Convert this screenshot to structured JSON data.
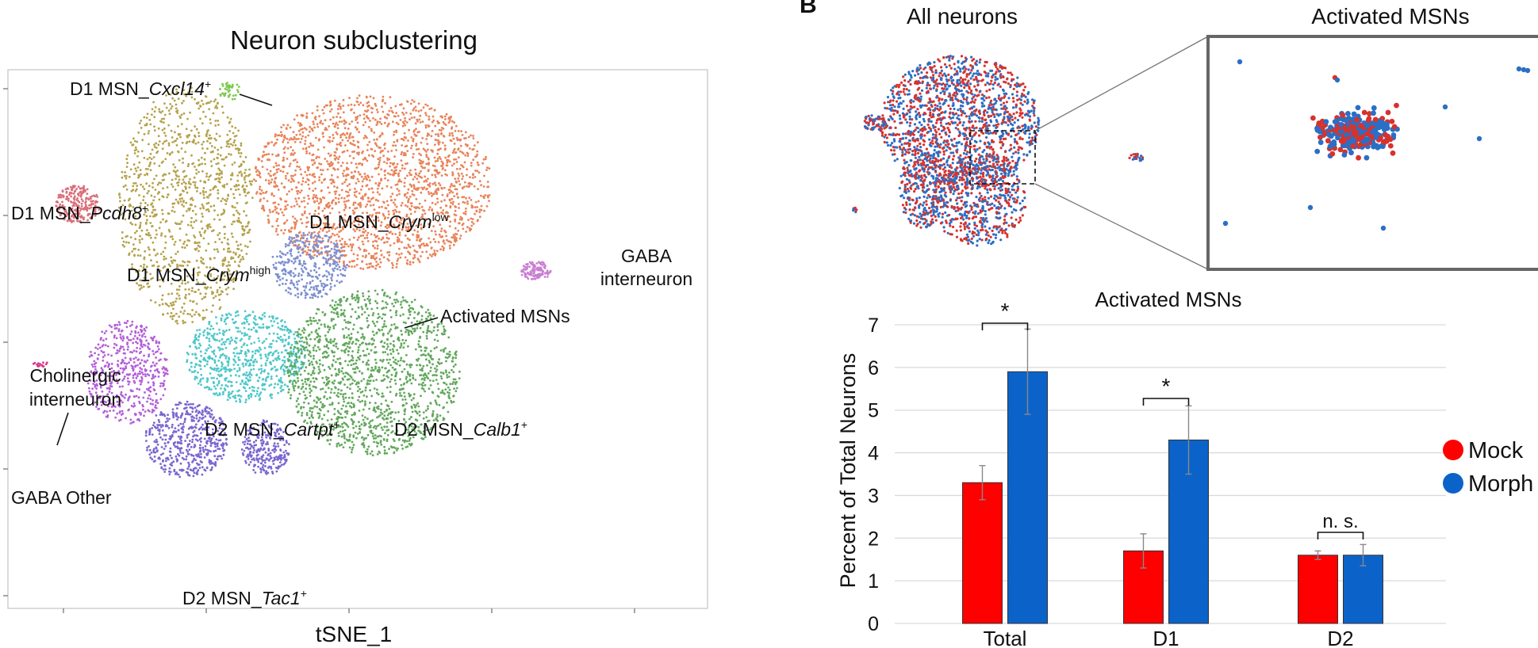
{
  "panel_letter": "B",
  "tsne": {
    "title": "Neuron subclustering",
    "xlabel": "tSNE_1",
    "clusters": [
      {
        "name": "D1 MSN_Cxcl14⁺",
        "prefix": "D1 MSN_",
        "gene": "Cxcl14",
        "sup": "+",
        "color": "#7ec850"
      },
      {
        "name": "D1 MSN_Pcdh8⁺",
        "prefix": "D1 MSN_",
        "gene": "Pcdh8",
        "sup": "+",
        "color": "#d9707a"
      },
      {
        "name": "D1 MSN_Crymʰⁱᵍʰ",
        "prefix": "D1 MSN_",
        "gene": "Crym",
        "sup": "high",
        "color": "#b5a24c"
      },
      {
        "name": "D1 MSN_Crymˡᵒʷ",
        "prefix": "D1 MSN_",
        "gene": "Crym",
        "sup": "low",
        "color": "#e8845a"
      },
      {
        "name": "GABA interneuron",
        "line1": "GABA",
        "line2": "interneuron",
        "color": "#c97fd3"
      },
      {
        "name": "Activated MSNs",
        "color": "#7c8fd1"
      },
      {
        "name": "Cholinergic interneuron",
        "line1": "Cholinergic",
        "line2": "interneuron",
        "color": "#d63a8a"
      },
      {
        "name": "D2 MSN_Cartpt⁺",
        "prefix": "D2 MSN_",
        "gene": "Cartpt",
        "sup": "+",
        "color": "#4fc7c9"
      },
      {
        "name": "D2 MSN_Calb1⁺",
        "prefix": "D2 MSN_",
        "gene": "Calb1",
        "sup": "+",
        "color": "#62a85c"
      },
      {
        "name": "GABA Other",
        "color": "#b45fd8"
      },
      {
        "name": "D2 MSN_Tac1⁺",
        "prefix": "D2 MSN_",
        "gene": "Tac1",
        "sup": "+",
        "color": "#7a66cf"
      }
    ]
  },
  "overview": {
    "left_title": "All neurons",
    "right_title": "Activated MSNs",
    "colors": {
      "mock": "#d7322d",
      "morphine": "#2a6fc6"
    }
  },
  "chart_data": {
    "type": "bar",
    "title": "Activated MSNs",
    "xlabel": "",
    "ylabel": "Percent of Total Neurons",
    "categories": [
      "Total",
      "D1",
      "D2"
    ],
    "ylim": [
      0,
      7
    ],
    "yticks": [
      0,
      1,
      2,
      3,
      4,
      5,
      6,
      7
    ],
    "grid": true,
    "legend": "right",
    "series": [
      {
        "name": "Mock",
        "color": "#ff0000",
        "values": [
          3.3,
          1.7,
          1.6
        ],
        "errors": [
          0.4,
          0.4,
          0.1
        ]
      },
      {
        "name": "Morph",
        "color": "#0b63c9",
        "values": [
          5.9,
          4.3,
          1.6
        ],
        "errors": [
          1.0,
          0.8,
          0.25
        ]
      }
    ],
    "significance": [
      "*",
      "*",
      "n. s."
    ]
  }
}
